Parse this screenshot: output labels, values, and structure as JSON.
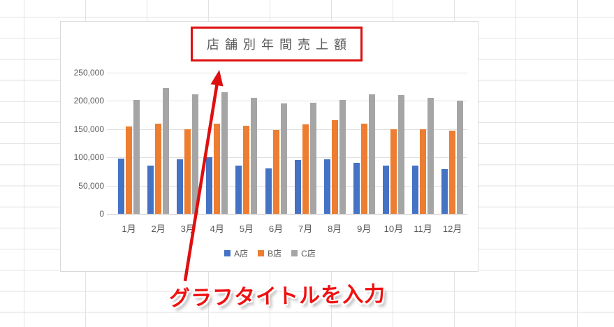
{
  "chart_data": {
    "type": "bar",
    "title": "店舗別年間売上額",
    "categories": [
      "1月",
      "2月",
      "3月",
      "4月",
      "5月",
      "6月",
      "7月",
      "8月",
      "9月",
      "10月",
      "11月",
      "12月"
    ],
    "series": [
      {
        "name": "A店",
        "color": "#4472C4",
        "values": [
          98000,
          86000,
          96000,
          100000,
          85000,
          80000,
          95000,
          96000,
          90000,
          85000,
          86000,
          79000
        ]
      },
      {
        "name": "B店",
        "color": "#ED7D31",
        "values": [
          155000,
          160000,
          150000,
          160000,
          156000,
          149000,
          158000,
          166000,
          160000,
          150000,
          150000,
          147000
        ]
      },
      {
        "name": "C店",
        "color": "#A5A5A5",
        "values": [
          202000,
          223000,
          212000,
          215000,
          205000,
          196000,
          197000,
          202000,
          212000,
          210000,
          205000,
          200000
        ]
      }
    ],
    "xlabel": "",
    "ylabel": "",
    "ylim": [
      0,
      250000
    ],
    "ytick_step": 50000,
    "ytick_labels": [
      "0",
      "50,000",
      "100,000",
      "150,000",
      "200,000",
      "250,000"
    ],
    "grid": true,
    "legend_position": "bottom"
  },
  "annotation": {
    "text": "グラフタイトルを入力",
    "text_color": "#f01010",
    "arrow_color": "#df0f0f",
    "highlight_box_color": "#df0f0f"
  },
  "styles": {
    "title_color": "#595959",
    "axis_label_color": "#595959",
    "gridline_color": "#e0e0e0",
    "chart_border_color": "#d9d9d9",
    "sheet_gridline_color": "#e2e2e2"
  }
}
